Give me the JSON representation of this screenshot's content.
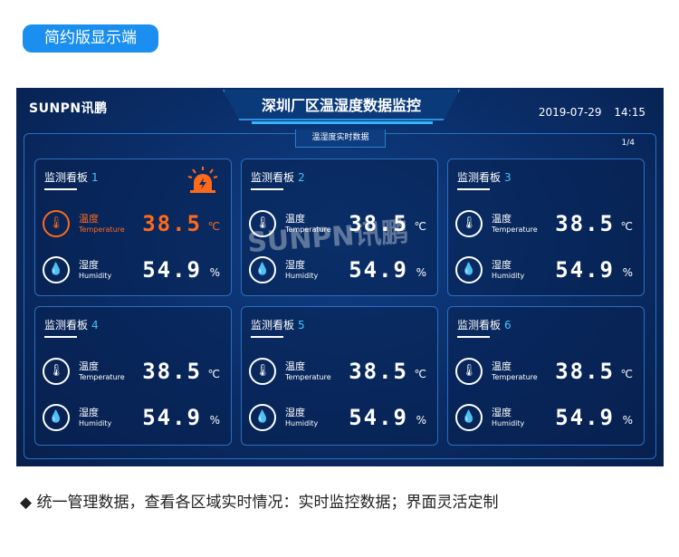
{
  "header": {
    "label": "简约版显示端"
  },
  "screen": {
    "brand": "SUNPN讯鹏",
    "title": "深圳厂区温湿度数据监控",
    "date": "2019-07-29",
    "time": "14:15",
    "subtitle": "温湿度实时数据",
    "page": "1/4",
    "watermark": "SUNPN讯鹏"
  },
  "panels": [
    {
      "title": "监测看板",
      "num": "1",
      "temp_label": "温度",
      "temp_en": "Temperature",
      "temp": "38.5",
      "temp_unit": "℃",
      "hum_label": "湿度",
      "hum_en": "Humidity",
      "hum": "54.9",
      "hum_unit": "%",
      "alarm": true
    },
    {
      "title": "监测看板",
      "num": "2",
      "temp_label": "温度",
      "temp_en": "Temperature",
      "temp": "38.5",
      "temp_unit": "℃",
      "hum_label": "湿度",
      "hum_en": "Humidity",
      "hum": "54.9",
      "hum_unit": "%"
    },
    {
      "title": "监测看板",
      "num": "3",
      "temp_label": "温度",
      "temp_en": "Temperature",
      "temp": "38.5",
      "temp_unit": "℃",
      "hum_label": "湿度",
      "hum_en": "Humidity",
      "hum": "54.9",
      "hum_unit": "%"
    },
    {
      "title": "监测看板",
      "num": "4",
      "temp_label": "温度",
      "temp_en": "Temperature",
      "temp": "38.5",
      "temp_unit": "℃",
      "hum_label": "湿度",
      "hum_en": "Humidity",
      "hum": "54.9",
      "hum_unit": "%"
    },
    {
      "title": "监测看板",
      "num": "5",
      "temp_label": "温度",
      "temp_en": "Temperature",
      "temp": "38.5",
      "temp_unit": "℃",
      "hum_label": "湿度",
      "hum_en": "Humidity",
      "hum": "54.9",
      "hum_unit": "%"
    },
    {
      "title": "监测看板",
      "num": "6",
      "temp_label": "温度",
      "temp_en": "Temperature",
      "temp": "38.5",
      "temp_unit": "℃",
      "hum_label": "湿度",
      "hum_en": "Humidity",
      "hum": "54.9",
      "hum_unit": "%"
    }
  ],
  "colors": {
    "alert": "#ff6a1a",
    "accent": "#3ec6ff",
    "pill": "#1a8ff0"
  },
  "caption": "◆ 统一管理数据，查看各区域实时情况：实时监控数据；界面灵活定制"
}
